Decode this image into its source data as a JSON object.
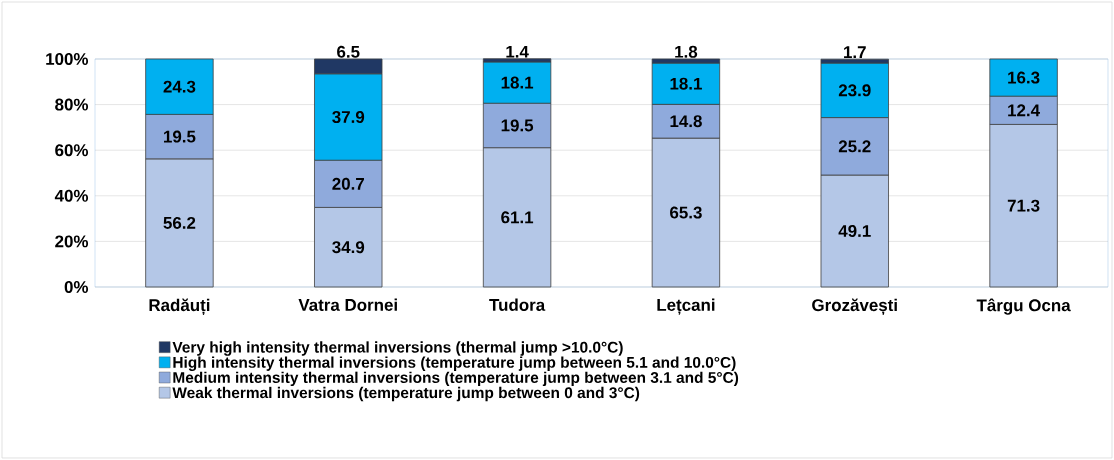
{
  "chart_data": {
    "type": "bar",
    "stacked": true,
    "categories": [
      "Radăuți",
      "Vatra Dornei",
      "Tudora",
      "Lețcani",
      "Grozăvești",
      "Târgu Ocna"
    ],
    "series": [
      {
        "name": "Weak thermal inversions (temperature jump between 0 and 3°C)",
        "color": "#b4c7e7",
        "values": [
          56.2,
          34.9,
          61.1,
          65.3,
          49.1,
          71.3
        ]
      },
      {
        "name": "Medium intensity thermal inversions (temperature jump between 3.1 and 5°C)",
        "color": "#8faadc",
        "values": [
          19.5,
          20.7,
          19.5,
          14.8,
          25.2,
          12.4
        ]
      },
      {
        "name": "High intensity thermal inversions (temperature jump between 5.1 and 10.0°C)",
        "color": "#00b0f0",
        "values": [
          24.3,
          37.9,
          18.1,
          18.1,
          23.9,
          16.3
        ]
      },
      {
        "name": "Very high intensity thermal inversions (thermal jump >10.0°C)",
        "color": "#203864",
        "values": [
          null,
          6.5,
          1.4,
          1.8,
          1.7,
          null
        ]
      }
    ],
    "ylim": [
      0,
      100
    ],
    "yticks": [
      {
        "value": 0,
        "label": "0%"
      },
      {
        "value": 20,
        "label": "20%"
      },
      {
        "value": 40,
        "label": "40%"
      },
      {
        "value": 60,
        "label": "60%"
      },
      {
        "value": 80,
        "label": "80%"
      },
      {
        "value": 100,
        "label": "100%"
      }
    ],
    "grid": "y",
    "legend": "bottom",
    "data_labels": true
  }
}
